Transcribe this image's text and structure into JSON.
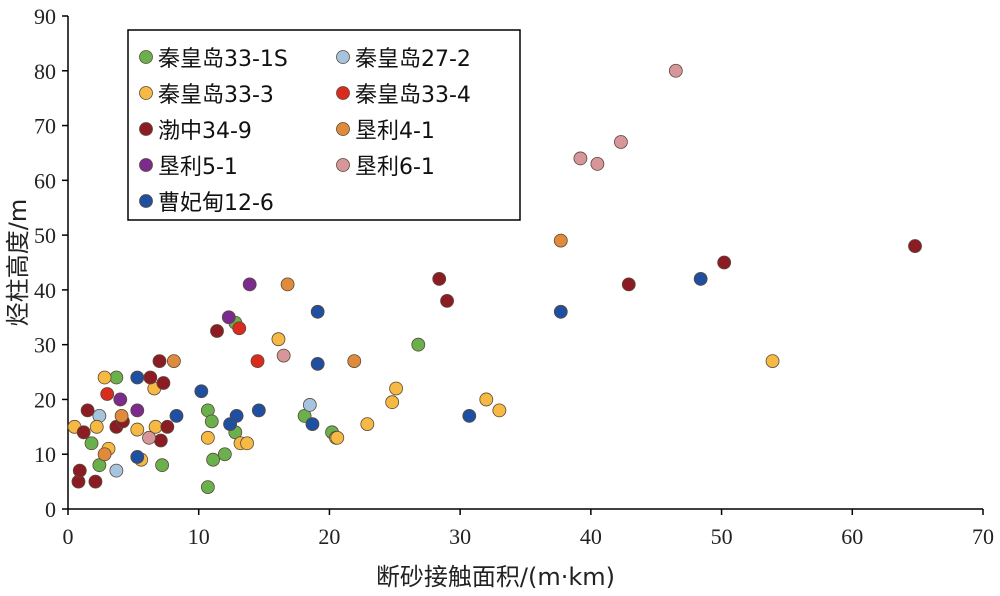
{
  "chart_data": {
    "type": "scatter",
    "title": "",
    "xlabel": "断砂接触面积/(m·km)",
    "ylabel": "烃柱高度/m",
    "xlim": [
      0,
      70
    ],
    "ylim": [
      0,
      90
    ],
    "xticks": [
      "0",
      "10",
      "20",
      "30",
      "40",
      "50",
      "60",
      "70"
    ],
    "yticks": [
      "0",
      "10",
      "20",
      "30",
      "40",
      "50",
      "60",
      "70",
      "80",
      "90"
    ],
    "grid": false,
    "legend_position": "top-left",
    "series": [
      {
        "name": "秦皇岛33-1S",
        "color": "#6ab04c",
        "points": [
          [
            7.2,
            8
          ],
          [
            10.7,
            4
          ],
          [
            11.1,
            9
          ],
          [
            12.0,
            10
          ],
          [
            12.8,
            14
          ],
          [
            10.7,
            18
          ],
          [
            11.0,
            16
          ],
          [
            18.1,
            17
          ],
          [
            20.2,
            14
          ],
          [
            26.8,
            30
          ],
          [
            3.7,
            24
          ],
          [
            2.4,
            8
          ],
          [
            1.8,
            12
          ],
          [
            12.8,
            34
          ]
        ]
      },
      {
        "name": "秦皇岛27-2",
        "color": "#a6c4df",
        "points": [
          [
            2.4,
            17
          ],
          [
            3.7,
            7
          ],
          [
            18.5,
            19
          ]
        ]
      },
      {
        "name": "秦皇岛33-3",
        "color": "#f6b944",
        "points": [
          [
            0.5,
            15
          ],
          [
            2.2,
            15
          ],
          [
            3.1,
            11
          ],
          [
            2.8,
            24
          ],
          [
            5.6,
            9
          ],
          [
            5.3,
            14.5
          ],
          [
            6.7,
            15
          ],
          [
            6.6,
            22
          ],
          [
            10.7,
            13
          ],
          [
            13.2,
            12
          ],
          [
            13.7,
            12
          ],
          [
            16.1,
            31
          ],
          [
            20.5,
            13
          ],
          [
            20.6,
            13
          ],
          [
            22.9,
            15.5
          ],
          [
            24.8,
            19.5
          ],
          [
            25.1,
            22
          ],
          [
            32.0,
            20
          ],
          [
            33.0,
            18
          ],
          [
            53.9,
            27
          ]
        ]
      },
      {
        "name": "秦皇岛33-4",
        "color": "#d92b1e",
        "points": [
          [
            3.0,
            21
          ],
          [
            13.1,
            33
          ],
          [
            14.5,
            27
          ]
        ]
      },
      {
        "name": "渤中34-9",
        "color": "#8b1c24",
        "points": [
          [
            0.8,
            5
          ],
          [
            0.9,
            7
          ],
          [
            1.2,
            14
          ],
          [
            1.5,
            18
          ],
          [
            2.1,
            5
          ],
          [
            3.7,
            15
          ],
          [
            4.2,
            16
          ],
          [
            6.3,
            24
          ],
          [
            7.0,
            27
          ],
          [
            7.1,
            12.5
          ],
          [
            7.3,
            23
          ],
          [
            7.6,
            15
          ],
          [
            11.4,
            32.5
          ],
          [
            28.4,
            42
          ],
          [
            29.0,
            38
          ],
          [
            42.9,
            41
          ],
          [
            50.2,
            45
          ],
          [
            64.8,
            48
          ]
        ]
      },
      {
        "name": "垦利4-1",
        "color": "#e08a3c",
        "points": [
          [
            2.8,
            10
          ],
          [
            4.1,
            17
          ],
          [
            8.1,
            27
          ],
          [
            16.8,
            41
          ],
          [
            21.9,
            27
          ],
          [
            37.7,
            49
          ]
        ]
      },
      {
        "name": "垦利5-1",
        "color": "#7b2a8e",
        "points": [
          [
            4.0,
            20
          ],
          [
            5.3,
            18
          ],
          [
            12.3,
            35
          ],
          [
            13.9,
            41
          ]
        ]
      },
      {
        "name": "垦利6-1",
        "color": "#d6969a",
        "points": [
          [
            6.2,
            13
          ],
          [
            16.5,
            28
          ],
          [
            39.2,
            64
          ],
          [
            40.5,
            63
          ],
          [
            42.3,
            67
          ],
          [
            46.5,
            80
          ]
        ]
      },
      {
        "name": "曹妃甸12-6",
        "color": "#1f4fa1",
        "points": [
          [
            5.3,
            9.5
          ],
          [
            5.3,
            24
          ],
          [
            8.3,
            17
          ],
          [
            10.2,
            21.5
          ],
          [
            12.4,
            15.5
          ],
          [
            12.9,
            17
          ],
          [
            14.6,
            18
          ],
          [
            18.7,
            15.5
          ],
          [
            19.1,
            26.5
          ],
          [
            19.1,
            36
          ],
          [
            30.7,
            17
          ],
          [
            37.7,
            36
          ],
          [
            48.4,
            42
          ]
        ]
      }
    ]
  }
}
